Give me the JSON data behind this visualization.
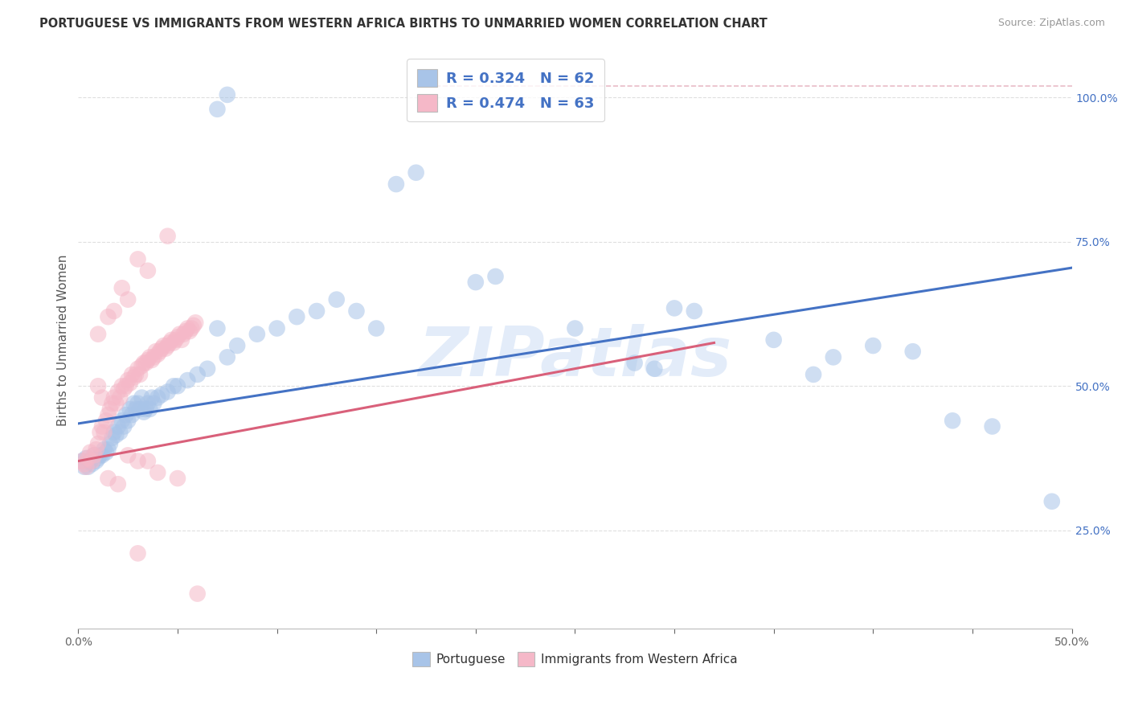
{
  "title": "PORTUGUESE VS IMMIGRANTS FROM WESTERN AFRICA BIRTHS TO UNMARRIED WOMEN CORRELATION CHART",
  "source": "Source: ZipAtlas.com",
  "ylabel": "Births to Unmarried Women",
  "xlim": [
    0.0,
    0.5
  ],
  "ylim": [
    0.08,
    1.08
  ],
  "legend1_R": "0.324",
  "legend1_N": "62",
  "legend2_R": "0.474",
  "legend2_N": "63",
  "blue_color": "#a8c4e8",
  "pink_color": "#f5b8c8",
  "blue_line_color": "#4472c4",
  "pink_line_color": "#d9607a",
  "pink_dashed_color": "#e0a0b0",
  "watermark_color": "#ccddf5",
  "background_color": "#ffffff",
  "grid_color": "#d8d8d8",
  "blue_regression": [
    0.0,
    0.435,
    0.5,
    0.705
  ],
  "pink_regression": [
    0.0,
    0.37,
    0.32,
    0.575
  ],
  "pink_dashed_line": [
    0.18,
    1.02,
    0.5,
    1.02
  ],
  "portuguese_scatter": [
    [
      0.002,
      0.37
    ],
    [
      0.003,
      0.36
    ],
    [
      0.004,
      0.375
    ],
    [
      0.005,
      0.36
    ],
    [
      0.006,
      0.37
    ],
    [
      0.007,
      0.365
    ],
    [
      0.008,
      0.38
    ],
    [
      0.009,
      0.37
    ],
    [
      0.01,
      0.375
    ],
    [
      0.011,
      0.38
    ],
    [
      0.012,
      0.38
    ],
    [
      0.013,
      0.39
    ],
    [
      0.014,
      0.385
    ],
    [
      0.015,
      0.39
    ],
    [
      0.016,
      0.4
    ],
    [
      0.017,
      0.41
    ],
    [
      0.018,
      0.42
    ],
    [
      0.019,
      0.415
    ],
    [
      0.02,
      0.43
    ],
    [
      0.021,
      0.42
    ],
    [
      0.022,
      0.44
    ],
    [
      0.023,
      0.43
    ],
    [
      0.024,
      0.45
    ],
    [
      0.025,
      0.44
    ],
    [
      0.026,
      0.46
    ],
    [
      0.027,
      0.45
    ],
    [
      0.028,
      0.47
    ],
    [
      0.029,
      0.46
    ],
    [
      0.03,
      0.47
    ],
    [
      0.031,
      0.46
    ],
    [
      0.032,
      0.48
    ],
    [
      0.033,
      0.455
    ],
    [
      0.034,
      0.46
    ],
    [
      0.035,
      0.47
    ],
    [
      0.036,
      0.46
    ],
    [
      0.037,
      0.48
    ],
    [
      0.038,
      0.47
    ],
    [
      0.04,
      0.48
    ],
    [
      0.042,
      0.485
    ],
    [
      0.045,
      0.49
    ],
    [
      0.048,
      0.5
    ],
    [
      0.05,
      0.5
    ],
    [
      0.055,
      0.51
    ],
    [
      0.06,
      0.52
    ],
    [
      0.065,
      0.53
    ],
    [
      0.07,
      0.6
    ],
    [
      0.075,
      0.55
    ],
    [
      0.08,
      0.57
    ],
    [
      0.09,
      0.59
    ],
    [
      0.1,
      0.6
    ],
    [
      0.11,
      0.62
    ],
    [
      0.12,
      0.63
    ],
    [
      0.13,
      0.65
    ],
    [
      0.14,
      0.63
    ],
    [
      0.15,
      0.6
    ],
    [
      0.07,
      0.98
    ],
    [
      0.075,
      1.005
    ],
    [
      0.16,
      0.85
    ],
    [
      0.17,
      0.87
    ],
    [
      0.2,
      0.68
    ],
    [
      0.21,
      0.69
    ],
    [
      0.25,
      0.6
    ],
    [
      0.28,
      0.54
    ],
    [
      0.29,
      0.53
    ],
    [
      0.3,
      0.635
    ],
    [
      0.31,
      0.63
    ],
    [
      0.35,
      0.58
    ],
    [
      0.37,
      0.52
    ],
    [
      0.38,
      0.55
    ],
    [
      0.4,
      0.57
    ],
    [
      0.42,
      0.56
    ],
    [
      0.44,
      0.44
    ],
    [
      0.46,
      0.43
    ],
    [
      0.49,
      0.3
    ]
  ],
  "immigrants_scatter": [
    [
      0.002,
      0.37
    ],
    [
      0.003,
      0.365
    ],
    [
      0.004,
      0.36
    ],
    [
      0.005,
      0.375
    ],
    [
      0.006,
      0.385
    ],
    [
      0.007,
      0.37
    ],
    [
      0.008,
      0.38
    ],
    [
      0.009,
      0.39
    ],
    [
      0.01,
      0.4
    ],
    [
      0.011,
      0.42
    ],
    [
      0.012,
      0.43
    ],
    [
      0.013,
      0.42
    ],
    [
      0.014,
      0.44
    ],
    [
      0.015,
      0.45
    ],
    [
      0.016,
      0.46
    ],
    [
      0.017,
      0.47
    ],
    [
      0.018,
      0.48
    ],
    [
      0.019,
      0.47
    ],
    [
      0.02,
      0.49
    ],
    [
      0.021,
      0.48
    ],
    [
      0.022,
      0.5
    ],
    [
      0.023,
      0.495
    ],
    [
      0.024,
      0.5
    ],
    [
      0.025,
      0.51
    ],
    [
      0.026,
      0.505
    ],
    [
      0.027,
      0.52
    ],
    [
      0.028,
      0.515
    ],
    [
      0.029,
      0.52
    ],
    [
      0.03,
      0.53
    ],
    [
      0.031,
      0.52
    ],
    [
      0.032,
      0.535
    ],
    [
      0.033,
      0.54
    ],
    [
      0.034,
      0.54
    ],
    [
      0.035,
      0.545
    ],
    [
      0.036,
      0.55
    ],
    [
      0.037,
      0.545
    ],
    [
      0.038,
      0.55
    ],
    [
      0.039,
      0.56
    ],
    [
      0.04,
      0.555
    ],
    [
      0.041,
      0.56
    ],
    [
      0.042,
      0.565
    ],
    [
      0.043,
      0.57
    ],
    [
      0.044,
      0.565
    ],
    [
      0.045,
      0.57
    ],
    [
      0.046,
      0.575
    ],
    [
      0.047,
      0.58
    ],
    [
      0.048,
      0.575
    ],
    [
      0.049,
      0.58
    ],
    [
      0.05,
      0.585
    ],
    [
      0.051,
      0.59
    ],
    [
      0.052,
      0.58
    ],
    [
      0.053,
      0.59
    ],
    [
      0.054,
      0.595
    ],
    [
      0.055,
      0.6
    ],
    [
      0.056,
      0.595
    ],
    [
      0.057,
      0.6
    ],
    [
      0.058,
      0.605
    ],
    [
      0.059,
      0.61
    ],
    [
      0.01,
      0.59
    ],
    [
      0.015,
      0.62
    ],
    [
      0.018,
      0.63
    ],
    [
      0.022,
      0.67
    ],
    [
      0.025,
      0.65
    ],
    [
      0.03,
      0.72
    ],
    [
      0.035,
      0.7
    ],
    [
      0.045,
      0.76
    ],
    [
      0.01,
      0.5
    ],
    [
      0.012,
      0.48
    ],
    [
      0.015,
      0.34
    ],
    [
      0.02,
      0.33
    ],
    [
      0.025,
      0.38
    ],
    [
      0.03,
      0.37
    ],
    [
      0.035,
      0.37
    ],
    [
      0.04,
      0.35
    ],
    [
      0.05,
      0.34
    ],
    [
      0.03,
      0.21
    ],
    [
      0.06,
      0.14
    ]
  ]
}
